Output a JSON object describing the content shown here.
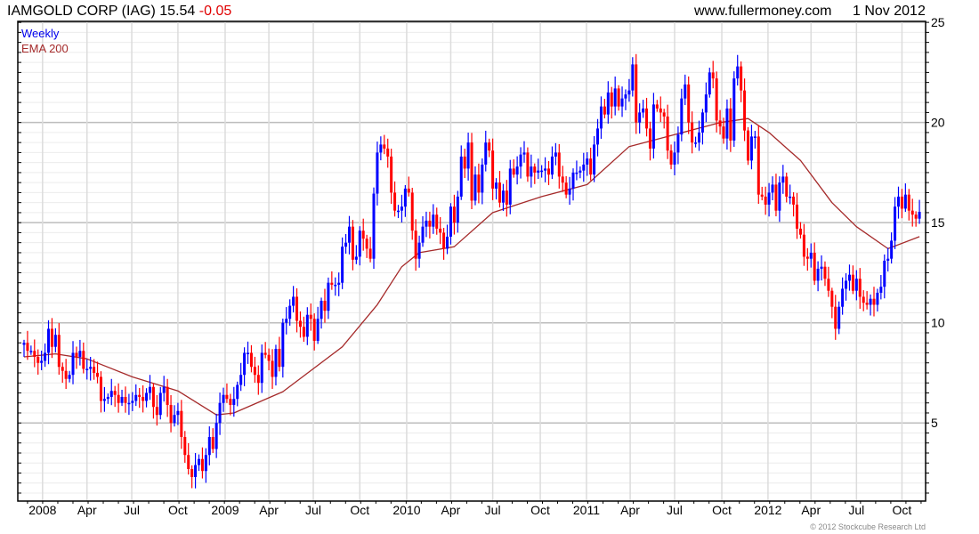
{
  "header": {
    "title": "IAMGOLD CORP (IAG) 15.54",
    "change": "-0.05",
    "change_color": "#e00000",
    "site": "www.fullermoney.com",
    "date": "1 Nov 2012"
  },
  "legend": {
    "series_label": "Weekly",
    "series_color": "#0000ee",
    "ema_label": "EMA 200",
    "ema_color": "#a52a2a"
  },
  "copyright": "© 2012 Stockcube Research Ltd",
  "chart_data": {
    "type": "candlestick",
    "title": "IAMGOLD CORP (IAG) weekly",
    "ylim": [
      1.1,
      25.05
    ],
    "y_ticks": [
      5,
      10,
      15,
      20,
      25
    ],
    "y_ticks_labels": [
      "5",
      "10",
      "15",
      "20",
      "25"
    ],
    "grid": true,
    "up_color": "#0000ff",
    "down_color": "#ff0000",
    "x_unit": "week index (0 = mid Dec 2007)",
    "x_ticks": [
      {
        "week": 5.3,
        "label": "2008"
      },
      {
        "week": 18,
        "label": "Apr"
      },
      {
        "week": 30.8,
        "label": "Jul"
      },
      {
        "week": 44,
        "label": "Oct"
      },
      {
        "week": 57.5,
        "label": "2009"
      },
      {
        "week": 70,
        "label": "Apr"
      },
      {
        "week": 82.7,
        "label": "Jul"
      },
      {
        "week": 96,
        "label": "Oct"
      },
      {
        "week": 109.4,
        "label": "2010"
      },
      {
        "week": 122,
        "label": "Apr"
      },
      {
        "week": 134,
        "label": "Jul"
      },
      {
        "week": 147.6,
        "label": "Oct"
      },
      {
        "week": 160.8,
        "label": "2011"
      },
      {
        "week": 173.3,
        "label": "Apr"
      },
      {
        "week": 186,
        "label": "Jul"
      },
      {
        "week": 199.5,
        "label": "Oct"
      },
      {
        "week": 212.7,
        "label": "2012"
      },
      {
        "week": 225,
        "label": "Apr"
      },
      {
        "week": 238,
        "label": "Jul"
      },
      {
        "week": 251,
        "label": "Oct"
      }
    ],
    "weekly_close": [
      9.0,
      8.6,
      8.6,
      8.3,
      8.0,
      8.1,
      8.5,
      9.7,
      8.8,
      9.4,
      7.8,
      7.6,
      7.2,
      7.4,
      8.5,
      8.3,
      8.6,
      7.7,
      7.7,
      7.8,
      7.5,
      7.3,
      6.1,
      6.2,
      6.3,
      6.6,
      6.4,
      6.0,
      6.3,
      6.0,
      6.0,
      6.1,
      6.4,
      6.3,
      6.1,
      6.5,
      6.8,
      5.8,
      5.4,
      6.5,
      6.8,
      5.9,
      5.0,
      5.4,
      5.6,
      4.3,
      3.4,
      2.7,
      2.3,
      2.9,
      3.2,
      2.6,
      3.4,
      4.3,
      3.7,
      5.0,
      6.0,
      6.4,
      6.2,
      5.9,
      6.2,
      6.9,
      7.4,
      8.5,
      8.5,
      7.8,
      7.4,
      7.0,
      8.5,
      8.4,
      8.1,
      7.3,
      8.7,
      7.8,
      10.0,
      10.2,
      10.85,
      11.3,
      10.1,
      9.8,
      9.3,
      10.4,
      10.2,
      9.1,
      10.2,
      11.1,
      10.6,
      12.0,
      11.9,
      11.9,
      12.0,
      13.8,
      14.0,
      14.8,
      13.15,
      13.3,
      14.6,
      14.2,
      13.7,
      13.2,
      16.45,
      18.5,
      18.9,
      18.7,
      18.3,
      16.5,
      15.6,
      15.6,
      15.8,
      16.7,
      16.5,
      14.6,
      13.2,
      14.0,
      14.8,
      15.1,
      14.8,
      15.4,
      14.7,
      14.5,
      13.7,
      14.3,
      15.8,
      15.0,
      16.3,
      18.3,
      17.7,
      19.0,
      16.1,
      17.4,
      16.5,
      17.9,
      19.0,
      18.6,
      16.7,
      17.0,
      16.0,
      16.6,
      15.9,
      17.7,
      17.4,
      17.8,
      18.4,
      18.5,
      17.3,
      17.8,
      17.5,
      17.6,
      17.6,
      17.7,
      17.4,
      18.3,
      18.5,
      17.3,
      17.0,
      16.4,
      16.7,
      17.5,
      17.5,
      17.6,
      17.9,
      18.2,
      17.4,
      18.9,
      19.7,
      20.8,
      20.4,
      21.5,
      20.8,
      21.7,
      20.8,
      21.2,
      21.4,
      21.6,
      22.9,
      20.0,
      20.5,
      20.7,
      19.7,
      18.7,
      20.9,
      20.7,
      20.5,
      20.3,
      18.6,
      17.9,
      18.5,
      19.4,
      21.2,
      21.9,
      20.0,
      19.0,
      19.0,
      19.5,
      20.5,
      21.4,
      22.5,
      22.2,
      20.1,
      19.8,
      19.2,
      20.7,
      19.1,
      22.2,
      22.8,
      21.6,
      19.6,
      18.1,
      19.3,
      19.3,
      16.4,
      16.3,
      15.9,
      16.5,
      16.9,
      15.6,
      17.0,
      17.3,
      16.3,
      16.3,
      15.9,
      14.7,
      14.4,
      13.3,
      13.2,
      13.5,
      12.1,
      12.7,
      12.8,
      12.2,
      11.6,
      10.8,
      9.7,
      10.8,
      11.7,
      12.1,
      12.4,
      11.6,
      12.2,
      11.3,
      11.0,
      10.9,
      11.2,
      10.9,
      11.5,
      11.8,
      13.1,
      13.2,
      14.1,
      15.8,
      16.3,
      15.7,
      16.4,
      15.6,
      15.4,
      15.2,
      15.54
    ],
    "ema_200": [
      {
        "week": 0,
        "value": 8.3
      },
      {
        "week": 9,
        "value": 8.45
      },
      {
        "week": 18,
        "value": 8.2
      },
      {
        "week": 31,
        "value": 7.3
      },
      {
        "week": 44,
        "value": 6.6
      },
      {
        "week": 55,
        "value": 5.4
      },
      {
        "week": 60,
        "value": 5.5
      },
      {
        "week": 74,
        "value": 6.56
      },
      {
        "week": 91,
        "value": 8.8
      },
      {
        "week": 101,
        "value": 10.9
      },
      {
        "week": 108,
        "value": 12.8
      },
      {
        "week": 113,
        "value": 13.5
      },
      {
        "week": 123,
        "value": 13.8
      },
      {
        "week": 134,
        "value": 15.5
      },
      {
        "week": 148,
        "value": 16.3
      },
      {
        "week": 161,
        "value": 16.9
      },
      {
        "week": 173,
        "value": 18.8
      },
      {
        "week": 186,
        "value": 19.4
      },
      {
        "week": 199,
        "value": 20.0
      },
      {
        "week": 207,
        "value": 20.2
      },
      {
        "week": 213,
        "value": 19.5
      },
      {
        "week": 222,
        "value": 18.1
      },
      {
        "week": 231,
        "value": 16.0
      },
      {
        "week": 238,
        "value": 14.8
      },
      {
        "week": 247,
        "value": 13.7
      },
      {
        "week": 256,
        "value": 14.3
      }
    ]
  }
}
